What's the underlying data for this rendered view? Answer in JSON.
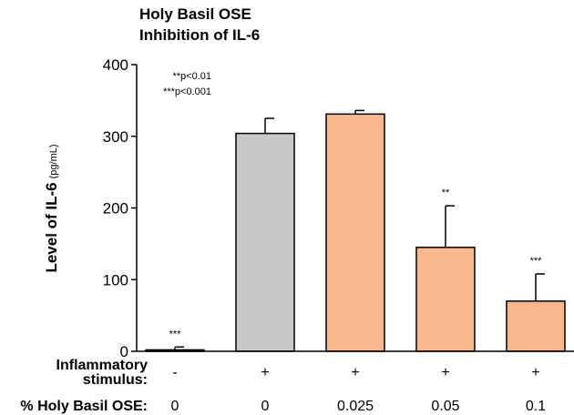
{
  "chart_data": {
    "type": "bar",
    "title_lines": [
      "Holy Basil OSE",
      "Inhibition of IL-6"
    ],
    "ylabel": "Level of IL-6",
    "ylabel_unit": "(pg/mL)",
    "ylim": [
      0,
      400
    ],
    "yticks": [
      "0",
      "100",
      "200",
      "300",
      "400"
    ],
    "legend_lines": [
      "**p<0.01",
      "***p<0.001"
    ],
    "categories": [
      "1",
      "2",
      "3",
      "4",
      "5"
    ],
    "values": [
      2,
      304,
      331,
      145,
      70
    ],
    "errors": [
      4,
      21,
      5,
      58,
      38
    ],
    "significance": [
      "***",
      "",
      "",
      "**",
      "***"
    ],
    "colors": [
      "#f9b88c",
      "#c8c8c8",
      "#f9b88c",
      "#f9b88c",
      "#f9b88c"
    ],
    "table_rows": [
      {
        "label_lines": [
          "Inflammatory",
          "stimulus:"
        ],
        "values": [
          "-",
          "+",
          "+",
          "+",
          "+"
        ]
      },
      {
        "label_lines": [
          "% Holy Basil OSE:"
        ],
        "values": [
          "0",
          "0",
          "0.025",
          "0.05",
          "0.1"
        ]
      }
    ]
  }
}
